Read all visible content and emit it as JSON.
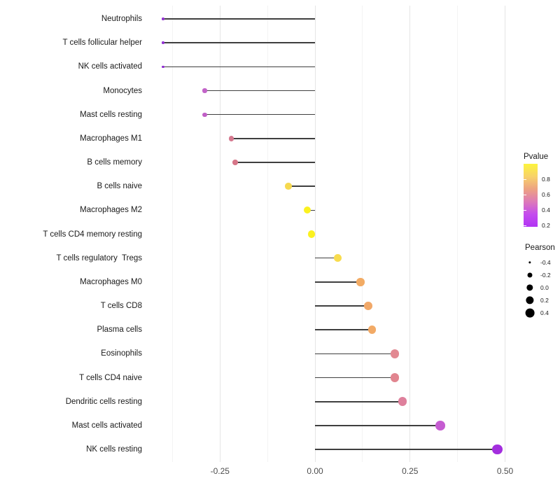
{
  "chart_data": {
    "type": "scatter",
    "subtype": "lollipop",
    "title": "",
    "xlabel": "",
    "ylabel": "",
    "xlim": [
      -0.445,
      0.52
    ],
    "x_ticks": [
      -0.25,
      0.0,
      0.25,
      0.5
    ],
    "x_tick_labels": [
      "-0.25",
      "0.00",
      "0.25",
      "0.50"
    ],
    "x_minor_ticks": [
      -0.375,
      -0.125,
      0.125,
      0.375
    ],
    "grid": "vertical-only",
    "legend_position": "right",
    "size_encoding": "Pearson",
    "color_encoding": "Pvalue",
    "categories": [
      "Neutrophils",
      "T cells follicular helper",
      "NK cells activated",
      "Monocytes",
      "Mast cells resting",
      "Macrophages M1",
      "B cells memory",
      "B cells naive",
      "Macrophages M2",
      "T cells CD4 memory resting",
      "T cells regulatory  Tregs",
      "Macrophages M0",
      "T cells CD8",
      "Plasma cells",
      "Eosinophils",
      "T cells CD4 naive",
      "Dendritic cells resting",
      "Mast cells activated",
      "NK cells resting"
    ],
    "series": [
      {
        "name": "Pearson",
        "values": [
          -0.4,
          -0.4,
          -0.4,
          -0.29,
          -0.29,
          -0.22,
          -0.21,
          -0.07,
          -0.02,
          -0.01,
          0.06,
          0.12,
          0.14,
          0.15,
          0.21,
          0.21,
          0.23,
          0.33,
          0.48
        ]
      },
      {
        "name": "Pvalue (estimated from color scale)",
        "values": [
          0.25,
          0.25,
          0.25,
          0.4,
          0.4,
          0.5,
          0.5,
          0.85,
          0.95,
          0.95,
          0.85,
          0.72,
          0.72,
          0.72,
          0.55,
          0.55,
          0.5,
          0.35,
          0.2
        ]
      }
    ],
    "point_colors": [
      "#9232d2",
      "#9232d2",
      "#8e2bd0",
      "#c263c8",
      "#c05fc6",
      "#d5798f",
      "#d67688",
      "#f6d94f",
      "#fbf120",
      "#fbf120",
      "#f8dc4e",
      "#f2ab64",
      "#f1a868",
      "#f2aa66",
      "#e28992",
      "#e1858f",
      "#de809c",
      "#c55cd1",
      "#a32ede"
    ]
  },
  "legend": {
    "pvalue": {
      "title": "Pvalue",
      "tick_labels": [
        "0.8",
        "0.6",
        "0.4",
        "0.2"
      ],
      "gradient_stops": [
        "#fcf43d",
        "#f8d26a",
        "#eda282",
        "#dd7ab8",
        "#c44cee",
        "#b134f4"
      ]
    },
    "pearson": {
      "title": "Pearson",
      "tick_labels": [
        "-0.4",
        "-0.2",
        "0.0",
        "0.2",
        "0.4"
      ],
      "tick_values": [
        -0.4,
        -0.2,
        0.0,
        0.2,
        0.4
      ],
      "dot_color": "#000000"
    }
  },
  "colors": {
    "stem": "#3f3f3f",
    "grid_major": "#e5e5e5",
    "grid_minor": "#f3f3f3",
    "axis_text": "#4d4d4d",
    "label_text": "#1a1a1a"
  }
}
